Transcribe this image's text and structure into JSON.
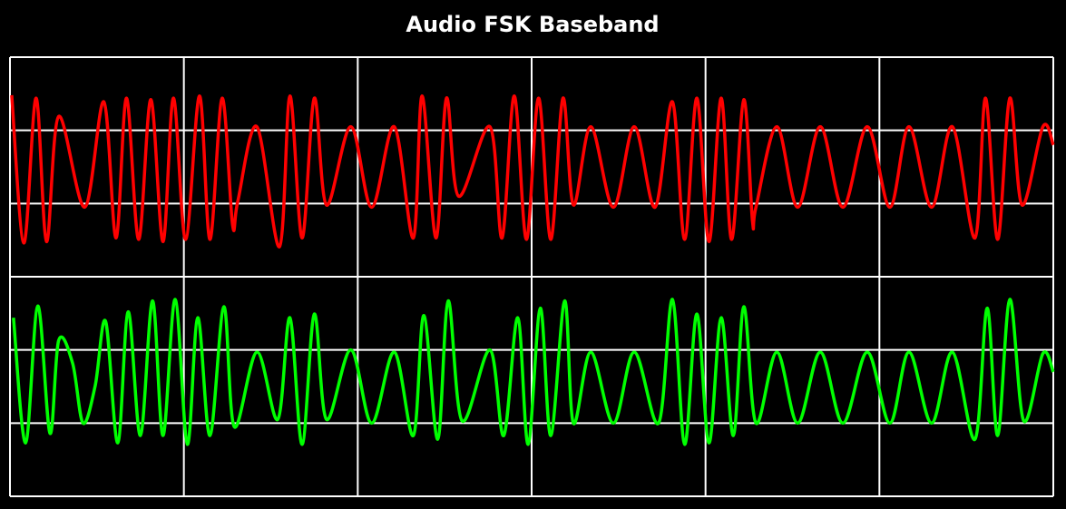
{
  "chart_data": [
    {
      "type": "line",
      "title": "Audio FSK Baseband",
      "color": "#ff0000",
      "grid": true,
      "xlim": [
        0,
        6
      ],
      "ylim": [
        0,
        3
      ],
      "xticks": [
        0,
        1,
        2,
        3,
        4,
        5,
        6
      ],
      "yticks": [
        0,
        1,
        2,
        3
      ],
      "x": [
        0.01,
        0.08,
        0.15,
        0.21,
        0.28,
        0.43,
        0.54,
        0.61,
        0.67,
        0.74,
        0.81,
        0.88,
        0.94,
        1.01,
        1.09,
        1.15,
        1.22,
        1.28,
        1.31,
        1.42,
        1.55,
        1.61,
        1.68,
        1.75,
        1.82,
        1.96,
        2.08,
        2.21,
        2.32,
        2.37,
        2.45,
        2.51,
        2.58,
        2.76,
        2.83,
        2.9,
        2.97,
        3.04,
        3.11,
        3.18,
        3.24,
        3.34,
        3.47,
        3.59,
        3.71,
        3.81,
        3.88,
        3.95,
        4.02,
        4.09,
        4.15,
        4.22,
        4.27,
        4.29,
        4.41,
        4.53,
        4.66,
        4.79,
        4.93,
        5.06,
        5.17,
        5.3,
        5.42,
        5.55,
        5.61,
        5.68,
        5.75,
        5.82,
        5.94,
        6.0
      ],
      "values": [
        2.48,
        0.46,
        2.44,
        0.48,
        2.19,
        0.95,
        2.39,
        0.53,
        2.44,
        0.51,
        2.42,
        0.48,
        2.44,
        0.51,
        2.47,
        0.51,
        2.44,
        0.71,
        1.03,
        2.05,
        0.41,
        2.47,
        0.53,
        2.44,
        0.98,
        2.05,
        0.95,
        2.05,
        0.53,
        2.47,
        0.53,
        2.44,
        1.1,
        2.05,
        0.53,
        2.47,
        0.51,
        2.44,
        0.51,
        2.44,
        0.98,
        2.05,
        0.95,
        2.05,
        0.95,
        2.39,
        0.51,
        2.44,
        0.48,
        2.44,
        0.51,
        2.42,
        0.76,
        0.95,
        2.05,
        0.95,
        2.05,
        0.95,
        2.05,
        0.95,
        2.05,
        0.95,
        2.05,
        0.53,
        2.44,
        0.51,
        2.44,
        0.98,
        2.05,
        1.8
      ]
    },
    {
      "type": "line",
      "color": "#00ff00",
      "grid": true,
      "xlim": [
        0,
        6
      ],
      "ylim": [
        0,
        3
      ],
      "xticks": [
        0,
        1,
        2,
        3,
        4,
        5,
        6
      ],
      "yticks": [
        0,
        1,
        2,
        3
      ],
      "x": [
        0.02,
        0.09,
        0.16,
        0.23,
        0.28,
        0.36,
        0.42,
        0.49,
        0.55,
        0.62,
        0.68,
        0.75,
        0.82,
        0.88,
        0.95,
        1.02,
        1.08,
        1.15,
        1.23,
        1.29,
        1.42,
        1.54,
        1.61,
        1.68,
        1.75,
        1.82,
        1.96,
        2.08,
        2.21,
        2.32,
        2.38,
        2.46,
        2.52,
        2.6,
        2.76,
        2.84,
        2.92,
        2.98,
        3.05,
        3.11,
        3.19,
        3.24,
        3.34,
        3.47,
        3.59,
        3.73,
        3.81,
        3.88,
        3.95,
        4.02,
        4.09,
        4.16,
        4.22,
        4.29,
        4.41,
        4.53,
        4.66,
        4.79,
        4.93,
        5.06,
        5.17,
        5.3,
        5.42,
        5.55,
        5.62,
        5.68,
        5.75,
        5.83,
        5.94,
        6.0
      ],
      "values": [
        2.44,
        0.73,
        2.6,
        0.86,
        2.13,
        1.82,
        1.0,
        1.51,
        2.39,
        0.73,
        2.52,
        0.83,
        2.67,
        0.83,
        2.69,
        0.71,
        2.44,
        0.83,
        2.59,
        0.95,
        1.97,
        1.05,
        2.44,
        0.71,
        2.49,
        1.05,
        2.0,
        1.0,
        1.97,
        0.83,
        2.47,
        0.78,
        2.67,
        1.03,
        2.0,
        0.83,
        2.44,
        0.71,
        2.57,
        0.83,
        2.67,
        1.0,
        1.97,
        1.0,
        1.97,
        1.0,
        2.69,
        0.71,
        2.49,
        0.73,
        2.44,
        0.83,
        2.59,
        1.0,
        1.97,
        1.0,
        1.97,
        1.0,
        1.97,
        1.0,
        1.97,
        1.0,
        1.97,
        0.78,
        2.57,
        0.83,
        2.69,
        1.03,
        1.95,
        1.7
      ]
    }
  ]
}
